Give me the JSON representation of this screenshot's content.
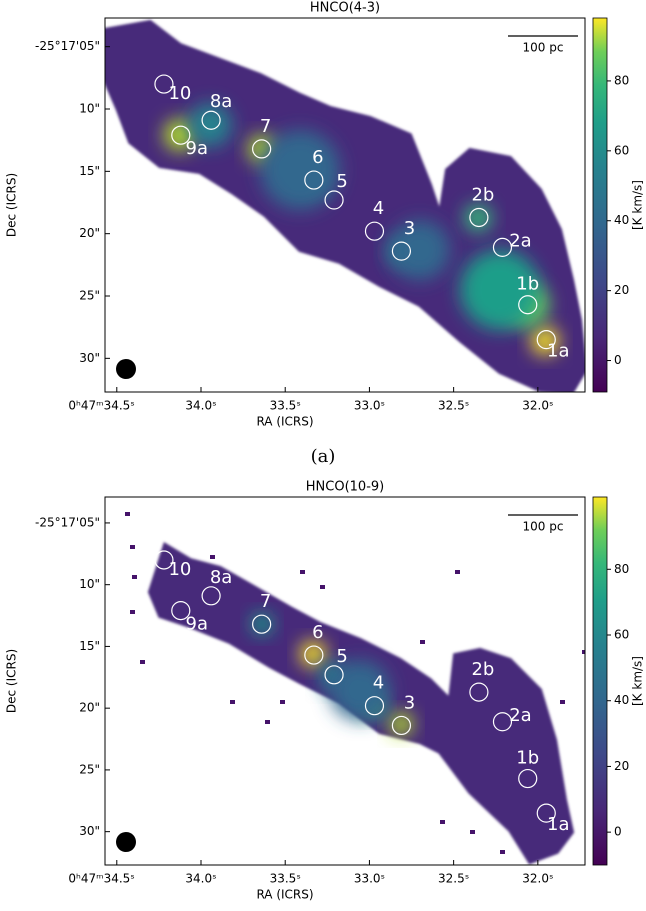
{
  "chart_data": [
    {
      "type": "image",
      "title": "HNCO(4-3)",
      "xlabel": "RA (ICRS)",
      "ylabel": "Dec (ICRS)",
      "colorbar_label": "[K km/s]",
      "scale_bar": "100 pc",
      "xlim": [
        34.57,
        31.72
      ],
      "ylim": [
        2.7,
        32.7
      ],
      "xticks": [
        {
          "value": 34.5,
          "label": "0ʰ47ᵐ34.5ˢ"
        },
        {
          "value": 34.0,
          "label": "34.0ˢ"
        },
        {
          "value": 33.5,
          "label": "33.5ˢ"
        },
        {
          "value": 33.0,
          "label": "33.0ˢ"
        },
        {
          "value": 32.5,
          "label": "32.5ˢ"
        },
        {
          "value": 32.0,
          "label": "32.0ˢ"
        }
      ],
      "yticks": [
        {
          "value": 5,
          "label": "-25°17'05\""
        },
        {
          "value": 10,
          "label": "10\""
        },
        {
          "value": 15,
          "label": "15\""
        },
        {
          "value": 20,
          "label": "20\""
        },
        {
          "value": 25,
          "label": "25\""
        },
        {
          "value": 30,
          "label": "30\""
        }
      ],
      "clim": [
        -9,
        98
      ],
      "cticks": [
        0,
        20,
        40,
        60,
        80
      ],
      "sources": {
        "names": [
          "10",
          "8a",
          "9a",
          "7",
          "6",
          "5",
          "4",
          "3",
          "2b",
          "2a",
          "1b",
          "1a"
        ],
        "x": [
          34.22,
          33.94,
          34.12,
          33.64,
          33.33,
          33.21,
          32.97,
          32.81,
          32.35,
          32.21,
          32.06,
          31.95
        ],
        "y": [
          8.0,
          10.9,
          12.1,
          13.2,
          15.7,
          17.3,
          19.8,
          21.4,
          18.7,
          21.1,
          25.7,
          28.5
        ]
      }
    },
    {
      "type": "image",
      "title": "HNCO(10-9)",
      "xlabel": "RA (ICRS)",
      "ylabel": "Dec (ICRS)",
      "colorbar_label": "[K km/s]",
      "scale_bar": "100 pc",
      "xlim": [
        34.57,
        31.72
      ],
      "ylim": [
        2.9,
        32.7
      ],
      "xticks": [
        {
          "value": 34.5,
          "label": "0ʰ47ᵐ34.5ˢ"
        },
        {
          "value": 34.0,
          "label": "34.0ˢ"
        },
        {
          "value": 33.5,
          "label": "33.5ˢ"
        },
        {
          "value": 33.0,
          "label": "33.0ˢ"
        },
        {
          "value": 32.5,
          "label": "32.5ˢ"
        },
        {
          "value": 32.0,
          "label": "32.0ˢ"
        }
      ],
      "yticks": [
        {
          "value": 5,
          "label": "-25°17'05\""
        },
        {
          "value": 10,
          "label": "10\""
        },
        {
          "value": 15,
          "label": "15\""
        },
        {
          "value": 20,
          "label": "20\""
        },
        {
          "value": 25,
          "label": "25\""
        },
        {
          "value": 30,
          "label": "30\""
        }
      ],
      "clim": [
        -10,
        102
      ],
      "cticks": [
        0,
        20,
        40,
        60,
        80
      ],
      "sources": {
        "names": [
          "10",
          "8a",
          "9a",
          "7",
          "6",
          "5",
          "4",
          "3",
          "2b",
          "2a",
          "1b",
          "1a"
        ],
        "x": [
          34.22,
          33.94,
          34.12,
          33.64,
          33.33,
          33.21,
          32.97,
          32.81,
          32.35,
          32.21,
          32.06,
          31.95
        ],
        "y": [
          8.0,
          10.9,
          12.1,
          13.2,
          15.7,
          17.3,
          19.8,
          21.4,
          18.7,
          21.1,
          25.7,
          28.5
        ]
      }
    }
  ],
  "captions": [
    "(a)"
  ]
}
